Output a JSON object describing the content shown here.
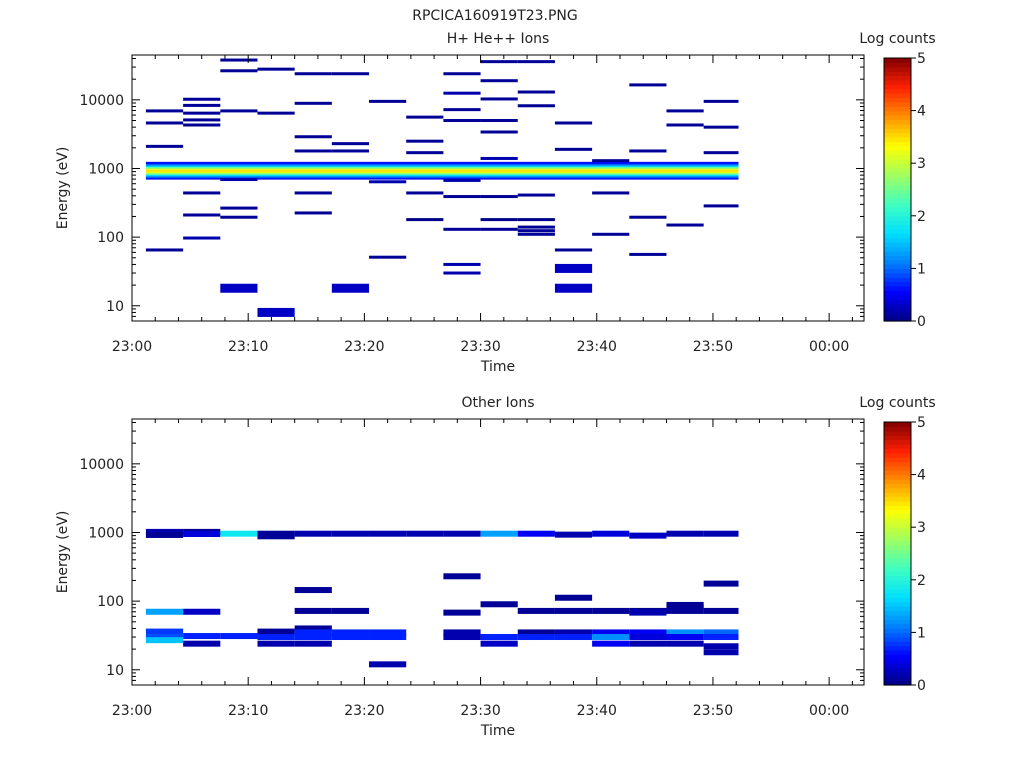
{
  "page_title": "RPCICA160919T23.PNG",
  "colors": {
    "colormap": [
      "#000080",
      "#0000ff",
      "#0080ff",
      "#00e0ff",
      "#40ffc0",
      "#a0ff60",
      "#ffff00",
      "#ff9000",
      "#ff2000",
      "#800000"
    ],
    "axis": "#000000",
    "background": "#ffffff"
  },
  "chart_data": [
    {
      "type": "heatmap",
      "title": "H+ He++ Ions",
      "xlabel": "Time",
      "ylabel": "Energy (eV)",
      "x_ticks": [
        "23:00",
        "23:10",
        "23:20",
        "23:30",
        "23:40",
        "23:50",
        "00:00"
      ],
      "xlim_minutes": [
        0,
        63
      ],
      "y_scale": "log",
      "ylim": [
        6,
        45000
      ],
      "y_ticks": [
        {
          "v": 10,
          "label": "10"
        },
        {
          "v": 100,
          "label": "100"
        },
        {
          "v": 1000,
          "label": "1000"
        },
        {
          "v": 10000,
          "label": "10000"
        }
      ],
      "colorbar": {
        "label": "Log counts",
        "range": [
          0,
          5
        ],
        "ticks": [
          "0",
          "1",
          "2",
          "3",
          "4",
          "5"
        ]
      },
      "band": {
        "t0": 1.2,
        "t1": 52.2,
        "e_low": 700,
        "e_high": 1250,
        "peak": 3.1
      },
      "cells": [
        [
          1.2,
          4.4,
          6900,
          0.1
        ],
        [
          1.2,
          4.4,
          4600,
          0.1
        ],
        [
          1.2,
          4.4,
          2100,
          0.1
        ],
        [
          1.2,
          4.4,
          65,
          0.1
        ],
        [
          4.4,
          7.6,
          10200,
          0.1
        ],
        [
          4.4,
          7.6,
          8300,
          0.1
        ],
        [
          4.4,
          7.6,
          6400,
          0.1
        ],
        [
          4.4,
          7.6,
          5100,
          0.1
        ],
        [
          4.4,
          7.6,
          4300,
          0.1
        ],
        [
          4.4,
          7.6,
          440,
          0.1
        ],
        [
          4.4,
          7.6,
          210,
          0.1
        ],
        [
          4.4,
          7.6,
          97,
          0.2
        ],
        [
          7.6,
          10.8,
          38000,
          0.1
        ],
        [
          7.6,
          10.8,
          26500,
          0.1
        ],
        [
          7.6,
          10.8,
          6900,
          0.1
        ],
        [
          7.6,
          10.8,
          690,
          0.2
        ],
        [
          7.6,
          10.8,
          265,
          0.1
        ],
        [
          7.6,
          10.8,
          195,
          0.1
        ],
        [
          7.6,
          10.8,
          18,
          0.3
        ],
        [
          10.8,
          14.0,
          28000,
          0.1
        ],
        [
          10.8,
          14.0,
          6400,
          0.1
        ],
        [
          10.8,
          14.0,
          8,
          0.3
        ],
        [
          14.0,
          17.2,
          24000,
          0.1
        ],
        [
          14.0,
          17.2,
          8900,
          0.1
        ],
        [
          14.0,
          17.2,
          2900,
          0.1
        ],
        [
          14.0,
          17.2,
          1800,
          0.1
        ],
        [
          14.0,
          17.2,
          440,
          0.1
        ],
        [
          14.0,
          17.2,
          225,
          0.1
        ],
        [
          17.2,
          20.4,
          24000,
          0.1
        ],
        [
          17.2,
          20.4,
          2300,
          0.1
        ],
        [
          17.2,
          20.4,
          1800,
          0.1
        ],
        [
          17.2,
          20.4,
          18,
          0.3
        ],
        [
          20.4,
          23.6,
          9500,
          0.1
        ],
        [
          20.4,
          23.6,
          640,
          0.2
        ],
        [
          20.4,
          23.6,
          51,
          0.1
        ],
        [
          23.6,
          26.8,
          5600,
          0.1
        ],
        [
          23.6,
          26.8,
          2500,
          0.1
        ],
        [
          23.6,
          26.8,
          1700,
          0.1
        ],
        [
          23.6,
          26.8,
          440,
          0.1
        ],
        [
          23.6,
          26.8,
          180,
          0.05
        ],
        [
          26.8,
          30.0,
          24000,
          0.1
        ],
        [
          26.8,
          30.0,
          12500,
          0.2
        ],
        [
          26.8,
          30.0,
          7200,
          0.1
        ],
        [
          26.8,
          30.0,
          5000,
          0.1
        ],
        [
          26.8,
          30.0,
          670,
          0.2
        ],
        [
          26.8,
          30.0,
          390,
          0.1
        ],
        [
          26.8,
          30.0,
          130,
          0.1
        ],
        [
          26.8,
          30.0,
          40,
          0.2
        ],
        [
          26.8,
          30.0,
          30,
          0.2
        ],
        [
          30.0,
          33.2,
          36000,
          0.1
        ],
        [
          30.0,
          33.2,
          19000,
          0.1
        ],
        [
          30.0,
          33.2,
          10300,
          0.1
        ],
        [
          30.0,
          33.2,
          5000,
          0.1
        ],
        [
          30.0,
          33.2,
          3400,
          0.1
        ],
        [
          30.0,
          33.2,
          1400,
          0.2
        ],
        [
          30.0,
          33.2,
          390,
          0.1
        ],
        [
          30.0,
          33.2,
          180,
          0.05
        ],
        [
          30.0,
          33.2,
          130,
          0.1
        ],
        [
          33.2,
          36.4,
          36000,
          0.1
        ],
        [
          33.2,
          36.4,
          13000,
          0.1
        ],
        [
          33.2,
          36.4,
          8200,
          0.1
        ],
        [
          33.2,
          36.4,
          410,
          0.1
        ],
        [
          33.2,
          36.4,
          180,
          0.05
        ],
        [
          33.2,
          36.4,
          140,
          0.1
        ],
        [
          33.2,
          36.4,
          124,
          0.1
        ],
        [
          33.2,
          36.4,
          110,
          0.1
        ],
        [
          36.4,
          39.6,
          4600,
          0.1
        ],
        [
          36.4,
          39.6,
          1900,
          0.1
        ],
        [
          36.4,
          39.6,
          65,
          0.1
        ],
        [
          36.4,
          39.6,
          35,
          0.3
        ],
        [
          36.4,
          39.6,
          18,
          0.3
        ],
        [
          39.6,
          42.8,
          1300,
          0.1
        ],
        [
          39.6,
          42.8,
          440,
          0.1
        ],
        [
          39.6,
          42.8,
          110,
          0.1
        ],
        [
          42.8,
          46.0,
          16500,
          0.1
        ],
        [
          42.8,
          46.0,
          1800,
          0.1
        ],
        [
          42.8,
          46.0,
          195,
          0.1
        ],
        [
          42.8,
          46.0,
          56,
          0.1
        ],
        [
          46.0,
          49.2,
          6900,
          0.1
        ],
        [
          46.0,
          49.2,
          4300,
          0.1
        ],
        [
          46.0,
          49.2,
          150,
          0.1
        ],
        [
          49.2,
          52.2,
          9500,
          0.1
        ],
        [
          49.2,
          52.2,
          4000,
          0.1
        ],
        [
          49.2,
          52.2,
          1700,
          0.1
        ],
        [
          49.2,
          52.2,
          285,
          0.1
        ]
      ]
    },
    {
      "type": "heatmap",
      "title": "Other Ions",
      "xlabel": "Time",
      "ylabel": "Energy (eV)",
      "x_ticks": [
        "23:00",
        "23:10",
        "23:20",
        "23:30",
        "23:40",
        "23:50",
        "00:00"
      ],
      "xlim_minutes": [
        0,
        63
      ],
      "y_scale": "log",
      "ylim": [
        6,
        45000
      ],
      "y_ticks": [
        {
          "v": 10,
          "label": "10"
        },
        {
          "v": 100,
          "label": "100"
        },
        {
          "v": 1000,
          "label": "1000"
        },
        {
          "v": 10000,
          "label": "10000"
        }
      ],
      "colorbar": {
        "label": "Log counts",
        "range": [
          0,
          5
        ],
        "ticks": [
          "0",
          "1",
          "2",
          "3",
          "4",
          "5"
        ]
      },
      "cells": [
        [
          1.2,
          4.4,
          1020,
          0.2
        ],
        [
          1.2,
          4.4,
          920,
          0.1
        ],
        [
          1.2,
          4.4,
          70,
          1.3
        ],
        [
          1.2,
          4.4,
          36,
          0.8
        ],
        [
          1.2,
          4.4,
          30,
          0.9
        ],
        [
          1.2,
          4.4,
          27,
          1.5
        ],
        [
          4.4,
          7.6,
          1020,
          0.1
        ],
        [
          4.4,
          7.6,
          950,
          0.4
        ],
        [
          4.4,
          7.6,
          70,
          0.3
        ],
        [
          4.4,
          7.6,
          31,
          0.7
        ],
        [
          4.4,
          7.6,
          24,
          0.2
        ],
        [
          7.6,
          10.8,
          960,
          1.8
        ],
        [
          7.6,
          10.8,
          31,
          0.7
        ],
        [
          10.8,
          14.0,
          960,
          0.1
        ],
        [
          10.8,
          14.0,
          880,
          0.1
        ],
        [
          10.8,
          14.0,
          36,
          0.1
        ],
        [
          10.8,
          14.0,
          30,
          0.7
        ],
        [
          10.8,
          14.0,
          24,
          0.2
        ],
        [
          14.0,
          17.2,
          960,
          0.2
        ],
        [
          14.0,
          17.2,
          145,
          0.1
        ],
        [
          14.0,
          17.2,
          72,
          0.1
        ],
        [
          14.0,
          17.2,
          40,
          0.1
        ],
        [
          14.0,
          17.2,
          35,
          0.7
        ],
        [
          14.0,
          17.2,
          30,
          0.7
        ],
        [
          14.0,
          17.2,
          24,
          0.2
        ],
        [
          17.2,
          20.4,
          960,
          0.2
        ],
        [
          17.2,
          20.4,
          72,
          0.1
        ],
        [
          17.2,
          20.4,
          35,
          0.7
        ],
        [
          17.2,
          20.4,
          30,
          0.7
        ],
        [
          20.4,
          23.6,
          960,
          0.2
        ],
        [
          20.4,
          23.6,
          35,
          0.7
        ],
        [
          20.4,
          23.6,
          30,
          0.7
        ],
        [
          20.4,
          23.6,
          12,
          0.2
        ],
        [
          23.6,
          26.8,
          960,
          0.2
        ],
        [
          26.8,
          30.0,
          960,
          0.2
        ],
        [
          26.8,
          30.0,
          230,
          0.1
        ],
        [
          26.8,
          30.0,
          68,
          0.1
        ],
        [
          26.8,
          30.0,
          35,
          0.2
        ],
        [
          26.8,
          30.0,
          30,
          0.2
        ],
        [
          30.0,
          33.2,
          960,
          1.3
        ],
        [
          30.0,
          33.2,
          90,
          0.1
        ],
        [
          30.0,
          33.2,
          30,
          0.7
        ],
        [
          30.0,
          33.2,
          24,
          0.3
        ],
        [
          33.2,
          36.4,
          960,
          0.5
        ],
        [
          33.2,
          36.4,
          72,
          0.1
        ],
        [
          33.2,
          36.4,
          35,
          0.1
        ],
        [
          33.2,
          36.4,
          30,
          0.7
        ],
        [
          36.4,
          39.6,
          930,
          0.2
        ],
        [
          36.4,
          39.6,
          112,
          0.1
        ],
        [
          36.4,
          39.6,
          72,
          0.1
        ],
        [
          36.4,
          39.6,
          35,
          0.2
        ],
        [
          36.4,
          39.6,
          30,
          0.7
        ],
        [
          39.6,
          42.8,
          960,
          0.4
        ],
        [
          39.6,
          42.8,
          72,
          0.1
        ],
        [
          39.6,
          42.8,
          35,
          0.5
        ],
        [
          39.6,
          42.8,
          30,
          1.2
        ],
        [
          39.6,
          42.8,
          24,
          0.5
        ],
        [
          42.8,
          46.0,
          900,
          0.3
        ],
        [
          42.8,
          46.0,
          72,
          0.1
        ],
        [
          42.8,
          46.0,
          68,
          0.2
        ],
        [
          42.8,
          46.0,
          35,
          0.5
        ],
        [
          42.8,
          46.0,
          30,
          0.4
        ],
        [
          42.8,
          46.0,
          24,
          0.2
        ],
        [
          46.0,
          49.2,
          960,
          0.2
        ],
        [
          46.0,
          49.2,
          88,
          0.1
        ],
        [
          46.0,
          49.2,
          80,
          0.1
        ],
        [
          46.0,
          49.2,
          72,
          0.1
        ],
        [
          46.0,
          49.2,
          35,
          1.2
        ],
        [
          46.0,
          49.2,
          30,
          0.5
        ],
        [
          46.0,
          49.2,
          24,
          0.2
        ],
        [
          49.2,
          52.2,
          960,
          0.2
        ],
        [
          49.2,
          52.2,
          180,
          0.1
        ],
        [
          49.2,
          52.2,
          72,
          0.1
        ],
        [
          49.2,
          52.2,
          35,
          1.0
        ],
        [
          49.2,
          52.2,
          30,
          0.7
        ],
        [
          49.2,
          52.2,
          22,
          0.2
        ],
        [
          49.2,
          52.2,
          18,
          0.2
        ]
      ]
    }
  ]
}
